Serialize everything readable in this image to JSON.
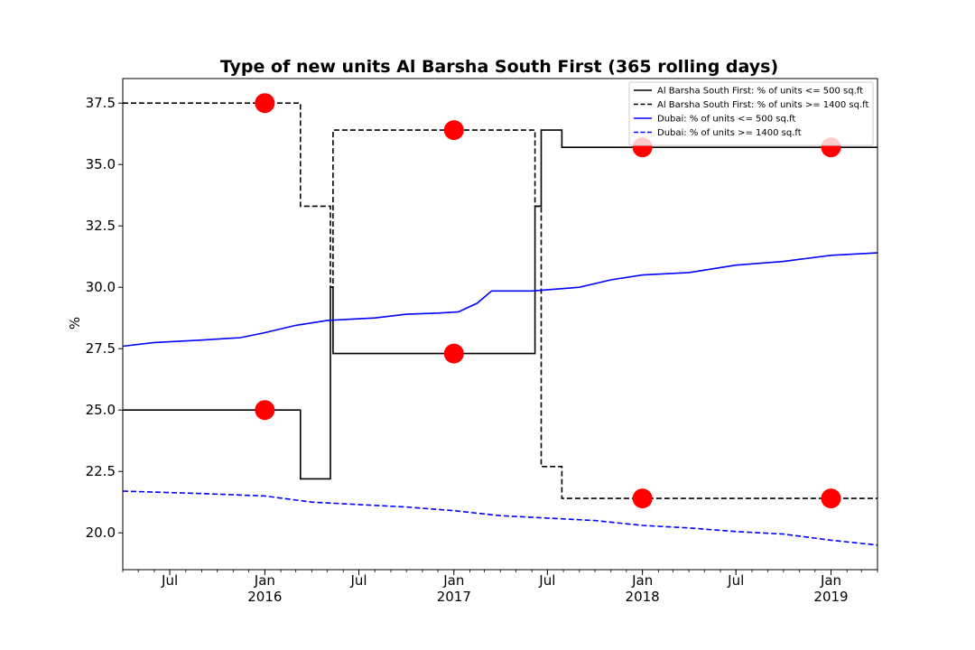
{
  "chart_data": {
    "type": "line",
    "title": "Type of new units Al Barsha South First (365 rolling days)",
    "xlabel": "",
    "ylabel": "%",
    "xlim": [
      "2015-04-01",
      "2019-04-01"
    ],
    "ylim": [
      18.5,
      38.5
    ],
    "y_ticks": [
      20.0,
      22.5,
      25.0,
      27.5,
      30.0,
      32.5,
      35.0,
      37.5
    ],
    "y_tick_labels": [
      "20.0",
      "22.5",
      "25.0",
      "27.5",
      "30.0",
      "32.5",
      "35.0",
      "37.5"
    ],
    "x_ticks": [
      {
        "date": "2015-07-01",
        "label": "Jul",
        "year": ""
      },
      {
        "date": "2016-01-01",
        "label": "Jan",
        "year": "2016"
      },
      {
        "date": "2016-07-01",
        "label": "Jul",
        "year": ""
      },
      {
        "date": "2017-01-01",
        "label": "Jan",
        "year": "2017"
      },
      {
        "date": "2017-07-01",
        "label": "Jul",
        "year": ""
      },
      {
        "date": "2018-01-01",
        "label": "Jan",
        "year": "2018"
      },
      {
        "date": "2018-07-01",
        "label": "Jul",
        "year": ""
      },
      {
        "date": "2019-01-01",
        "label": "Jan",
        "year": "2019"
      }
    ],
    "grid": false,
    "legend_position": "top-right",
    "series": [
      {
        "name": "Al Barsha South First: % of units <= 500 sq.ft",
        "color": "#000000",
        "style": "solid",
        "step": true,
        "points": [
          [
            "2015-04-01",
            25.0
          ],
          [
            "2016-03-10",
            25.0
          ],
          [
            "2016-03-10",
            22.2
          ],
          [
            "2016-05-07",
            22.2
          ],
          [
            "2016-05-07",
            30.0
          ],
          [
            "2016-05-12",
            30.0
          ],
          [
            "2016-05-12",
            27.3
          ],
          [
            "2017-06-07",
            27.3
          ],
          [
            "2017-06-07",
            33.3
          ],
          [
            "2017-06-19",
            33.3
          ],
          [
            "2017-06-19",
            36.4
          ],
          [
            "2017-07-29",
            36.4
          ],
          [
            "2017-07-29",
            35.7
          ],
          [
            "2019-04-01",
            35.7
          ]
        ]
      },
      {
        "name": "Al Barsha South First: % of units >= 1400 sq.ft",
        "color": "#000000",
        "style": "dashed",
        "step": true,
        "points": [
          [
            "2015-04-01",
            37.5
          ],
          [
            "2016-03-10",
            37.5
          ],
          [
            "2016-03-10",
            33.3
          ],
          [
            "2016-05-07",
            33.3
          ],
          [
            "2016-05-07",
            30.0
          ],
          [
            "2016-05-12",
            30.0
          ],
          [
            "2016-05-12",
            36.4
          ],
          [
            "2017-06-07",
            36.4
          ],
          [
            "2017-06-07",
            33.3
          ],
          [
            "2017-06-19",
            33.3
          ],
          [
            "2017-06-19",
            22.7
          ],
          [
            "2017-07-29",
            22.7
          ],
          [
            "2017-07-29",
            21.4
          ],
          [
            "2019-04-01",
            21.4
          ]
        ]
      },
      {
        "name": "Dubai: % of units <= 500 sq.ft",
        "color": "#0000ff",
        "style": "solid",
        "step": false,
        "points": [
          [
            "2015-04-01",
            27.6
          ],
          [
            "2015-06-01",
            27.75
          ],
          [
            "2015-09-01",
            27.85
          ],
          [
            "2015-11-15",
            27.95
          ],
          [
            "2016-01-01",
            28.15
          ],
          [
            "2016-03-01",
            28.45
          ],
          [
            "2016-05-01",
            28.65
          ],
          [
            "2016-08-01",
            28.75
          ],
          [
            "2016-10-01",
            28.9
          ],
          [
            "2016-12-01",
            28.95
          ],
          [
            "2017-01-10",
            29.0
          ],
          [
            "2017-02-15",
            29.35
          ],
          [
            "2017-03-15",
            29.85
          ],
          [
            "2017-06-01",
            29.85
          ],
          [
            "2017-09-01",
            30.0
          ],
          [
            "2017-11-01",
            30.3
          ],
          [
            "2018-01-01",
            30.5
          ],
          [
            "2018-04-01",
            30.6
          ],
          [
            "2018-07-01",
            30.9
          ],
          [
            "2018-10-01",
            31.05
          ],
          [
            "2019-01-01",
            31.3
          ],
          [
            "2019-04-01",
            31.4
          ]
        ]
      },
      {
        "name": "Dubai: % of units >= 1400 sq.ft",
        "color": "#0000ff",
        "style": "dashed",
        "step": false,
        "points": [
          [
            "2015-04-01",
            21.7
          ],
          [
            "2015-09-01",
            21.6
          ],
          [
            "2016-01-01",
            21.5
          ],
          [
            "2016-04-01",
            21.25
          ],
          [
            "2016-07-01",
            21.15
          ],
          [
            "2016-10-01",
            21.05
          ],
          [
            "2017-01-01",
            20.9
          ],
          [
            "2017-04-01",
            20.7
          ],
          [
            "2017-07-01",
            20.6
          ],
          [
            "2017-10-01",
            20.5
          ],
          [
            "2018-01-01",
            20.3
          ],
          [
            "2018-04-01",
            20.2
          ],
          [
            "2018-07-01",
            20.05
          ],
          [
            "2018-10-01",
            19.95
          ],
          [
            "2019-01-01",
            19.7
          ],
          [
            "2019-04-01",
            19.5
          ]
        ]
      }
    ],
    "markers": {
      "color": "#ff0000",
      "points": [
        [
          "2016-01-01",
          37.5
        ],
        [
          "2016-01-01",
          25.0
        ],
        [
          "2017-01-01",
          36.4
        ],
        [
          "2017-01-01",
          27.3
        ],
        [
          "2018-01-01",
          35.7
        ],
        [
          "2018-01-01",
          21.4
        ],
        [
          "2019-01-01",
          35.7
        ],
        [
          "2019-01-01",
          21.4
        ]
      ]
    }
  }
}
